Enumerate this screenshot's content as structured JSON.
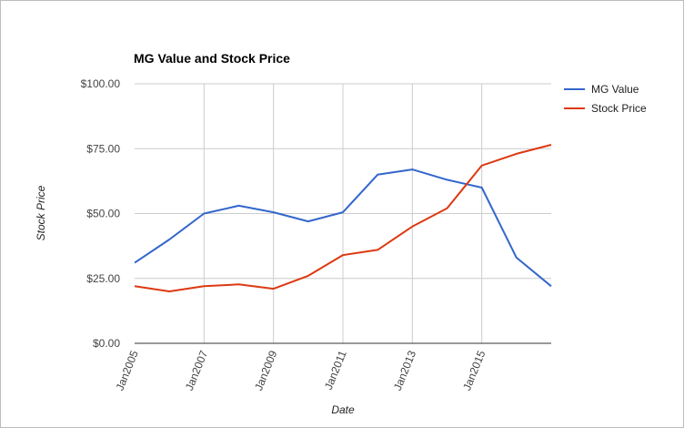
{
  "chart_data": {
    "type": "line",
    "title": "MG Value and Stock Price",
    "xlabel": "Date",
    "ylabel": "Stock Price",
    "x": [
      "2005-01",
      "2006-01",
      "2007-01",
      "2008-01",
      "2009-01",
      "2010-01",
      "2011-01",
      "2012-01",
      "2013-01",
      "2014-01",
      "2015-01",
      "2016-01",
      "2017-01"
    ],
    "x_tick_labels": [
      "Jan2005",
      "Jan2007",
      "Jan2009",
      "Jan2011",
      "Jan2013",
      "Jan2015"
    ],
    "y_tick_labels": [
      "$0.00",
      "$25.00",
      "$50.00",
      "$75.00",
      "$100.00"
    ],
    "ylim": [
      0,
      100
    ],
    "series": [
      {
        "name": "MG Value",
        "color": "#3366cc",
        "values": [
          31,
          40,
          50,
          53,
          50.5,
          47,
          50.5,
          65,
          67,
          63,
          60,
          33,
          22
        ]
      },
      {
        "name": "Stock Price",
        "color": "#dc3912",
        "values": [
          22,
          20,
          22,
          22.7,
          21,
          26,
          34,
          36,
          45,
          52,
          68.5,
          73,
          76.5
        ]
      }
    ],
    "grid": true,
    "legend_position": "right"
  }
}
